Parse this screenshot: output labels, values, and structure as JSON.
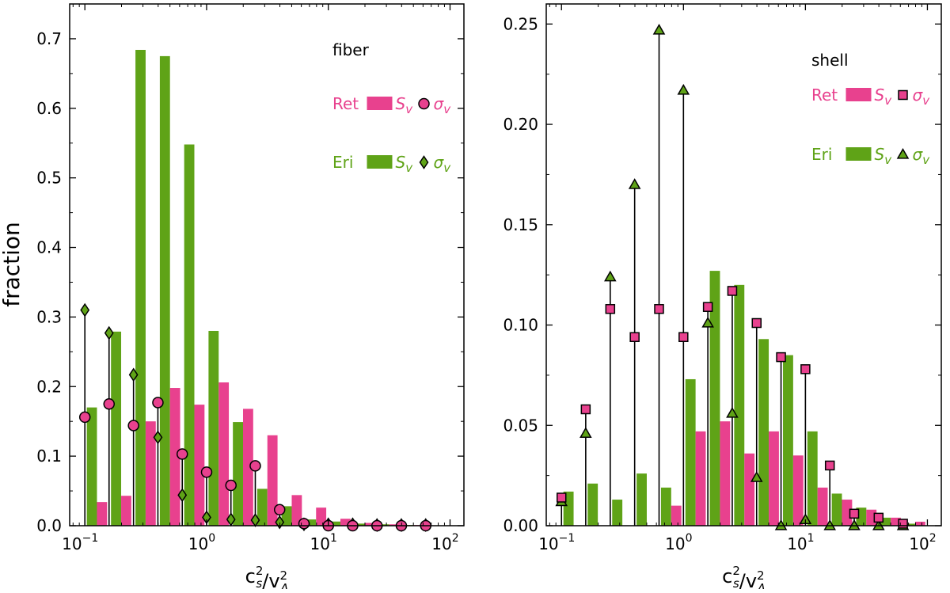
{
  "colors": {
    "ret": "#e8418e",
    "eri": "#5fa317",
    "stem": "#000000"
  },
  "figure": {
    "ylabel": "fraction",
    "xlabel": "c_s^2/v_A^2"
  },
  "chart_data": [
    {
      "type": "bar",
      "panel": "left",
      "annotation": "fiber",
      "xlabel": "c_s^2/v_A^2",
      "ylabel": "fraction",
      "xscale": "log",
      "xlim": [
        0.075,
        130
      ],
      "ylim": [
        0,
        0.75
      ],
      "yticks": [
        "0.0",
        "0.1",
        "0.2",
        "0.3",
        "0.4",
        "0.5",
        "0.6",
        "0.7"
      ],
      "ytick_values": [
        0,
        0.1,
        0.2,
        0.3,
        0.4,
        0.5,
        0.6,
        0.7
      ],
      "xticks": [
        {
          "base": "10",
          "exp": "−1",
          "value": 0.1
        },
        {
          "base": "10",
          "exp": "0",
          "value": 1
        },
        {
          "base": "10",
          "exp": "1",
          "value": 10
        },
        {
          "base": "10",
          "exp": "2",
          "value": 100
        }
      ],
      "legend": [
        {
          "group": "Ret",
          "bar_label": "S",
          "bar_sub": "v",
          "marker_label": "σ",
          "marker_sub": "v",
          "marker": "circle"
        },
        {
          "group": "Eri",
          "bar_label": "S",
          "bar_sub": "v",
          "marker_label": "σ",
          "marker_sub": "v",
          "marker": "diamond"
        }
      ],
      "x": [
        0.1,
        0.158,
        0.251,
        0.398,
        0.631,
        1.0,
        1.585,
        2.512,
        3.981,
        6.31,
        10.0,
        15.85,
        25.12,
        39.81,
        63.1
      ],
      "series": [
        {
          "name": "Ret S_v",
          "kind": "bar",
          "values": [
            0.034,
            0.043,
            0.15,
            0.198,
            0.174,
            0.206,
            0.168,
            0.13,
            0.044,
            0.026,
            0.01,
            0.004,
            0.002,
            0.001,
            0.0
          ]
        },
        {
          "name": "Eri S_v",
          "kind": "bar",
          "values": [
            0.17,
            0.279,
            0.684,
            0.675,
            0.548,
            0.28,
            0.149,
            0.053,
            0.028,
            0.009,
            0.006,
            0.003,
            0.002,
            0.001,
            0.0
          ]
        },
        {
          "name": "Ret σ_v",
          "kind": "stem",
          "marker": "circle",
          "values": [
            0.156,
            0.175,
            0.144,
            0.177,
            0.103,
            0.077,
            0.058,
            0.086,
            0.023,
            0.003,
            0.0,
            0.0,
            0.0,
            0.0,
            0.0
          ]
        },
        {
          "name": "Eri σ_v",
          "kind": "stem",
          "marker": "diamond",
          "values": [
            0.31,
            0.277,
            0.217,
            0.127,
            0.044,
            0.012,
            0.009,
            0.008,
            0.005,
            0.002,
            0.002,
            0.002,
            0.001,
            0.001,
            0.001
          ]
        }
      ]
    },
    {
      "type": "bar",
      "panel": "right",
      "annotation": "shell",
      "xlabel": "c_s^2/v_A^2",
      "ylabel": "",
      "xscale": "log",
      "xlim": [
        0.075,
        130
      ],
      "ylim": [
        0,
        0.26
      ],
      "yticks": [
        "0.00",
        "0.05",
        "0.10",
        "0.15",
        "0.20",
        "0.25"
      ],
      "ytick_values": [
        0,
        0.05,
        0.1,
        0.15,
        0.2,
        0.25
      ],
      "xticks": [
        {
          "base": "10",
          "exp": "−1",
          "value": 0.1
        },
        {
          "base": "10",
          "exp": "0",
          "value": 1
        },
        {
          "base": "10",
          "exp": "1",
          "value": 10
        },
        {
          "base": "10",
          "exp": "2",
          "value": 100
        }
      ],
      "legend": [
        {
          "group": "Ret",
          "bar_label": "S",
          "bar_sub": "v",
          "marker_label": "σ",
          "marker_sub": "v",
          "marker": "square"
        },
        {
          "group": "Eri",
          "bar_label": "S",
          "bar_sub": "v",
          "marker_label": "σ",
          "marker_sub": "v",
          "marker": "triangle"
        }
      ],
      "x": [
        0.1,
        0.158,
        0.251,
        0.398,
        0.631,
        1.0,
        1.585,
        2.512,
        3.981,
        6.31,
        10.0,
        15.85,
        25.12,
        39.81,
        63.1
      ],
      "series": [
        {
          "name": "Ret S_v",
          "kind": "bar",
          "values": [
            0.0,
            0.0,
            0.0,
            0.0,
            0.01,
            0.047,
            0.052,
            0.036,
            0.047,
            0.035,
            0.019,
            0.013,
            0.008,
            0.004,
            0.002
          ]
        },
        {
          "name": "Eri S_v",
          "kind": "bar",
          "values": [
            0.017,
            0.021,
            0.013,
            0.026,
            0.019,
            0.073,
            0.127,
            0.12,
            0.093,
            0.085,
            0.047,
            0.016,
            0.009,
            0.004,
            0.001
          ]
        },
        {
          "name": "Ret σ_v",
          "kind": "stem",
          "marker": "square",
          "values": [
            0.014,
            0.058,
            0.108,
            0.094,
            0.108,
            0.094,
            0.109,
            0.117,
            0.101,
            0.084,
            0.078,
            0.03,
            0.006,
            0.004,
            0.001
          ]
        },
        {
          "name": "Eri σ_v",
          "kind": "stem",
          "marker": "triangle",
          "values": [
            0.012,
            0.046,
            0.124,
            0.17,
            0.247,
            0.217,
            0.101,
            0.056,
            0.024,
            0.0,
            0.003,
            0.0,
            0.0,
            0.0,
            0.0
          ]
        }
      ]
    }
  ]
}
